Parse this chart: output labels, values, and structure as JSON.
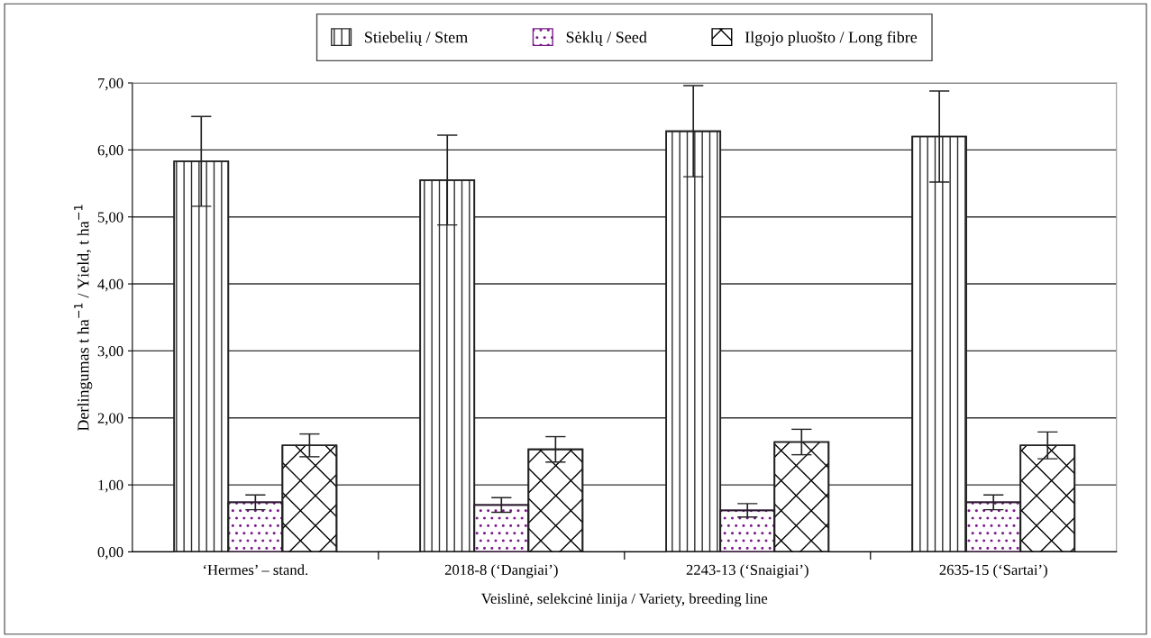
{
  "chart_data": {
    "type": "bar",
    "categories": [
      "‘Hermes’ – stand.",
      "2018-8 (‘Dangiai’)",
      "2243-13 (‘Snaigiai’)",
      "2635-15 (‘Sartai’)"
    ],
    "series": [
      {
        "name": "Stiebelių / Stem",
        "color": "#2d2d2d",
        "values": [
          5.83,
          5.55,
          6.28,
          6.2
        ],
        "errors": [
          0.67,
          0.67,
          0.68,
          0.68
        ]
      },
      {
        "name": "Sėklų / Seed",
        "color": "#7a1a8a",
        "values": [
          0.74,
          0.7,
          0.62,
          0.74
        ],
        "errors": [
          0.11,
          0.11,
          0.1,
          0.11
        ]
      },
      {
        "name": "Ilgojo pluošto / Long fibre",
        "color": "#000000",
        "values": [
          1.59,
          1.53,
          1.64,
          1.59
        ],
        "errors": [
          0.17,
          0.19,
          0.19,
          0.2
        ]
      }
    ],
    "xlabel": "Veislinė, selekcinė linija / Variety, breeding line",
    "ylabel": "Derlingumas t ha$^{−1}$ / Yield, t ha$^{−1}$",
    "ylim": [
      0,
      7
    ],
    "yticks": [
      {
        "value": 0,
        "label": "0,00"
      },
      {
        "value": 1,
        "label": "1,00"
      },
      {
        "value": 2,
        "label": "2,00"
      },
      {
        "value": 3,
        "label": "3,00"
      },
      {
        "value": 4,
        "label": "4,00"
      },
      {
        "value": 5,
        "label": "5,00"
      },
      {
        "value": 6,
        "label": "6,00"
      },
      {
        "value": 7,
        "label": "7,00"
      }
    ],
    "grid": "y",
    "legend": "top"
  }
}
